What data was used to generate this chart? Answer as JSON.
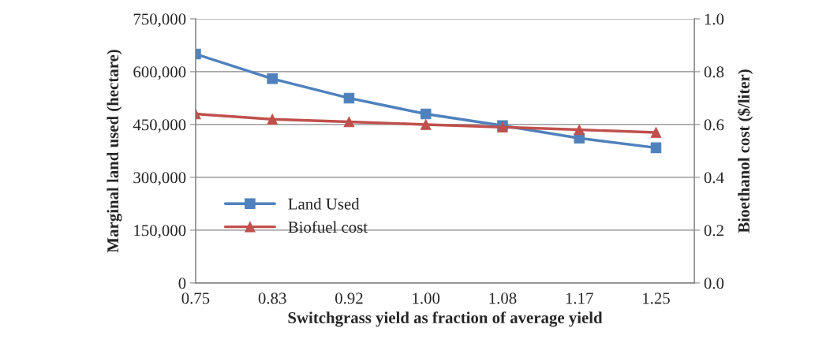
{
  "chart_data": {
    "type": "line",
    "xlabel": "Switchgrass yield as fraction of average yield",
    "ylabel": "Marginal land used (hectare)",
    "y2label": "Bioethanol cost ($/liter)",
    "categories": [
      "0.75",
      "0.83",
      "0.92",
      "1.00",
      "1.08",
      "1.17",
      "1.25"
    ],
    "series": [
      {
        "name": "Land Used",
        "color": "#4f81bd",
        "marker": "square",
        "values": [
          650000,
          580000,
          525000,
          480000,
          447000,
          411000,
          384000
        ]
      },
      {
        "name": "Biofuel cost",
        "color": "#c0504d",
        "marker": "triangle",
        "axis": "y2",
        "values": [
          0.64,
          0.62,
          0.61,
          0.6,
          0.59,
          0.58,
          0.57
        ]
      }
    ],
    "ylim": [
      0,
      750000
    ],
    "yticks": [
      {
        "value": 0,
        "label": "0"
      },
      {
        "value": 150000,
        "label": "150,000"
      },
      {
        "value": 300000,
        "label": "300,000"
      },
      {
        "value": 450000,
        "label": "450,000"
      },
      {
        "value": 600000,
        "label": "600,000"
      },
      {
        "value": 750000,
        "label": "750,000"
      }
    ],
    "y2lim": [
      0,
      1.0
    ],
    "y2ticks": [
      {
        "value": 0,
        "label": "0.0"
      },
      {
        "value": 0.2,
        "label": "0.2"
      },
      {
        "value": 0.4,
        "label": "0.4"
      },
      {
        "value": 0.6,
        "label": "0.6"
      },
      {
        "value": 0.8,
        "label": "0.8"
      },
      {
        "value": 1.0,
        "label": "1.0"
      }
    ],
    "grid": "y",
    "legend": "left",
    "line_style": "solid"
  }
}
